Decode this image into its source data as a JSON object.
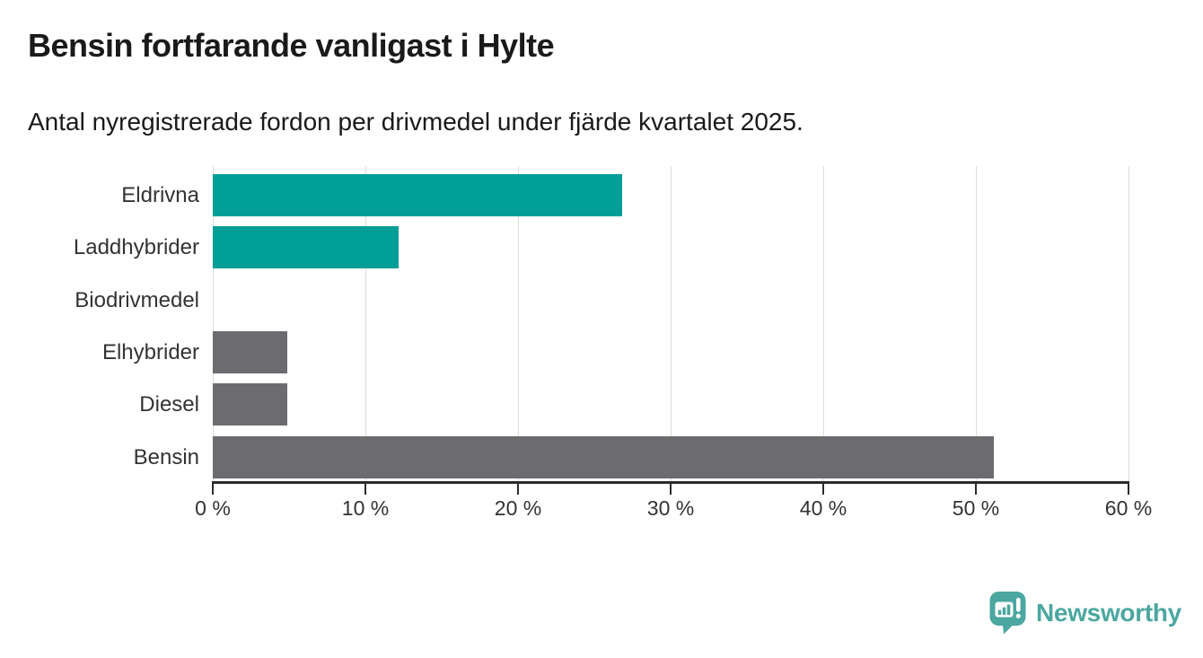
{
  "header": {
    "title": "Bensin fortfarande vanligast i Hylte",
    "subtitle": "Antal nyregistrerade fordon per drivmedel under fjärde kvartalet 2025."
  },
  "chart_data": {
    "type": "bar",
    "orientation": "horizontal",
    "title": "Bensin fortfarande vanligast i Hylte",
    "subtitle": "Antal nyregistrerade fordon per drivmedel under fjärde kvartalet 2025.",
    "categories": [
      "Eldrivna",
      "Laddhybrider",
      "Biodrivmedel",
      "Elhybrider",
      "Diesel",
      "Bensin"
    ],
    "values": [
      26.8,
      12.2,
      0,
      4.9,
      4.9,
      51.2
    ],
    "unit": "%",
    "xlim": [
      0,
      60
    ],
    "x_ticks": [
      0,
      10,
      20,
      30,
      40,
      50,
      60
    ],
    "x_tick_labels": [
      "0 %",
      "10 %",
      "20 %",
      "30 %",
      "40 %",
      "50 %",
      "60 %"
    ],
    "bar_colors": [
      "#009e96",
      "#009e96",
      "#009e96",
      "#6c6c70",
      "#6c6c70",
      "#6c6c70"
    ],
    "grid": true,
    "legend": "none"
  },
  "colors": {
    "teal": "#009e96",
    "gray": "#6c6c70",
    "gridline": "#dcdcdc",
    "axis": "#2b2b2b",
    "text": "#1a1a1a",
    "label": "#333333",
    "brand": "#4ba7a0"
  },
  "branding": {
    "logo_text": "Newsworthy",
    "logo_icon": "newsworthy-pin-barchart-icon"
  }
}
